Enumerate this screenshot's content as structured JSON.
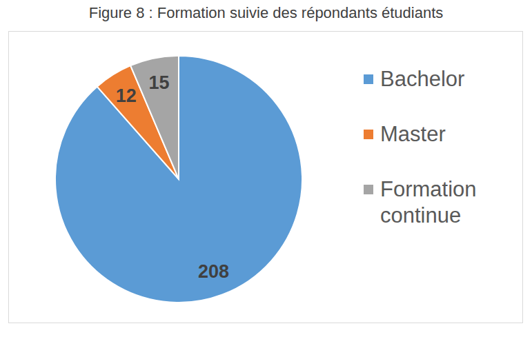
{
  "chart_data": {
    "type": "pie",
    "title": "Figure 8 : Formation suivie des répondants étudiants",
    "categories": [
      "Bachelor",
      "Master",
      "Formation continue"
    ],
    "values": [
      208,
      12,
      15
    ],
    "colors": [
      "#5b9bd5",
      "#ed7d31",
      "#a5a5a5"
    ],
    "data_labels": true,
    "legend": "right"
  }
}
